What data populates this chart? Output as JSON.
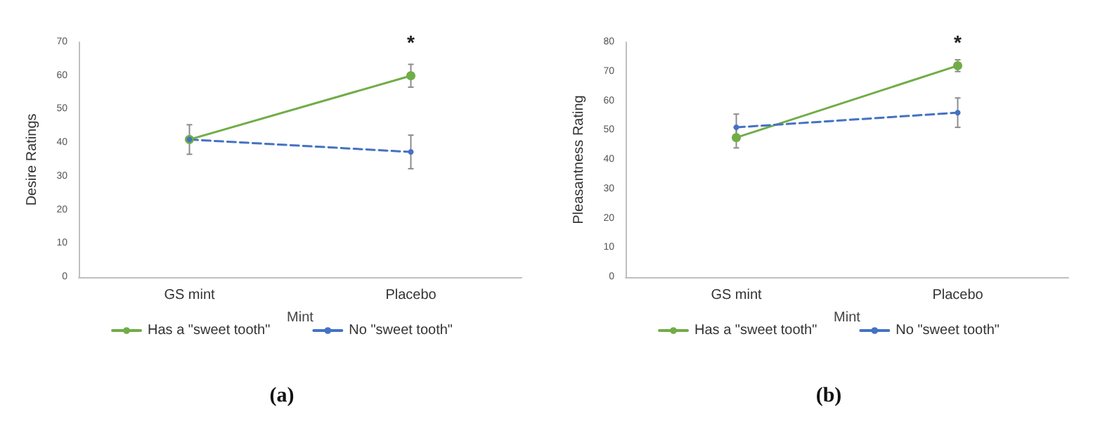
{
  "chart_data": [
    {
      "type": "line",
      "categories": [
        "GS mint",
        "Placebo"
      ],
      "xlabel": "Mint",
      "ylabel": "Desire Ratings",
      "ylim": [
        0,
        70
      ],
      "yticks": [
        0,
        10,
        20,
        30,
        40,
        50,
        60,
        70
      ],
      "grid": false,
      "legend": "bottom",
      "marker": "circle",
      "series": [
        {
          "name": "Has a \"sweet tooth\"",
          "color": "#70ad47",
          "values": [
            41,
            60
          ],
          "errors": [
            null,
            3.4
          ],
          "line_style": "solid"
        },
        {
          "name": "No \"sweet tooth\"",
          "color": "#4472c4",
          "values": [
            41,
            37.3
          ],
          "errors": [
            4.4,
            5
          ],
          "line_style": "dashed"
        }
      ],
      "annotations": [
        "*",
        "(a)"
      ]
    },
    {
      "type": "line",
      "categories": [
        "GS mint",
        "Placebo"
      ],
      "xlabel": "Mint",
      "ylabel": "Pleasantness Rating",
      "ylim": [
        0,
        80
      ],
      "yticks": [
        0,
        10,
        20,
        30,
        40,
        50,
        60,
        70,
        80
      ],
      "grid": false,
      "legend": "bottom",
      "marker": "circle",
      "series": [
        {
          "name": "Has a \"sweet tooth\"",
          "color": "#70ad47",
          "values": [
            47.5,
            72
          ],
          "errors": [
            3.5,
            2
          ],
          "line_style": "solid"
        },
        {
          "name": "No \"sweet tooth\"",
          "color": "#4472c4",
          "values": [
            51,
            56
          ],
          "errors": [
            4.5,
            5
          ],
          "line_style": "dashed"
        }
      ],
      "annotations": [
        "*",
        "(b)"
      ]
    }
  ]
}
